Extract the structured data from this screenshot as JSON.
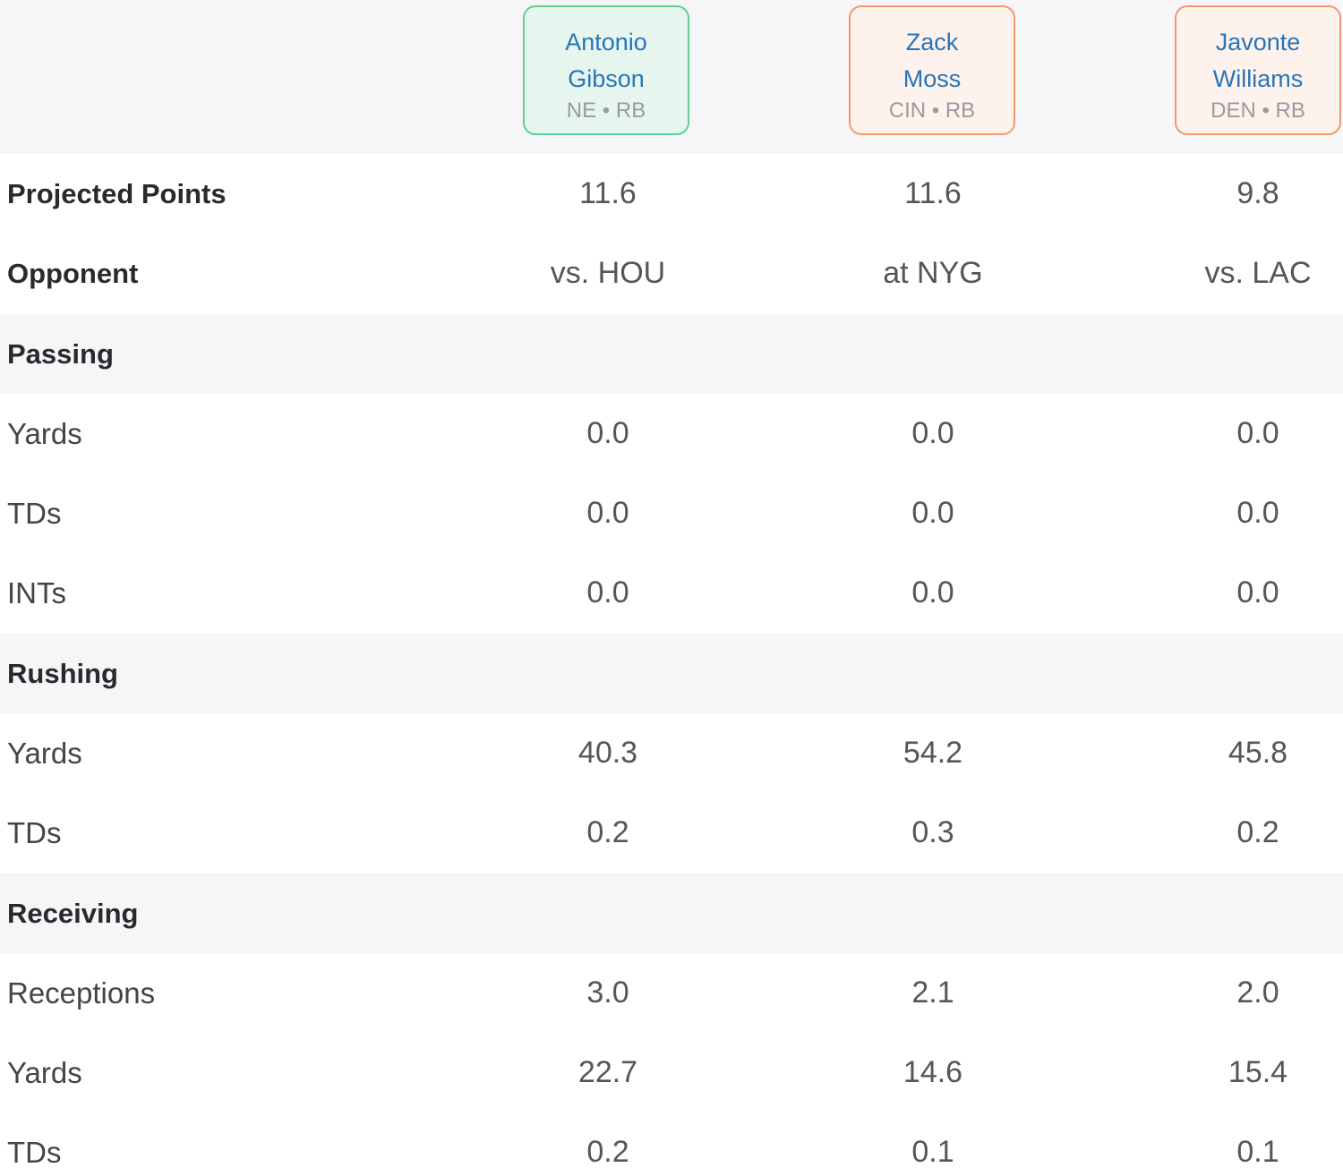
{
  "players": [
    {
      "first": "Antonio",
      "last": "Gibson",
      "meta": "NE • RB"
    },
    {
      "first": "Zack",
      "last": "Moss",
      "meta": "CIN • RB"
    },
    {
      "first": "Javonte",
      "last": "Williams",
      "meta": "DEN • RB"
    }
  ],
  "rows": {
    "projected_points": {
      "label": "Projected Points",
      "values": [
        "11.6",
        "11.6",
        "9.8"
      ]
    },
    "opponent": {
      "label": "Opponent",
      "values": [
        "vs. HOU",
        "at NYG",
        "vs. LAC"
      ]
    },
    "passing": {
      "label": "Passing"
    },
    "passing_yards": {
      "label": "Yards",
      "values": [
        "0.0",
        "0.0",
        "0.0"
      ]
    },
    "passing_tds": {
      "label": "TDs",
      "values": [
        "0.0",
        "0.0",
        "0.0"
      ]
    },
    "passing_ints": {
      "label": "INTs",
      "values": [
        "0.0",
        "0.0",
        "0.0"
      ]
    },
    "rushing": {
      "label": "Rushing"
    },
    "rushing_yards": {
      "label": "Yards",
      "values": [
        "40.3",
        "54.2",
        "45.8"
      ]
    },
    "rushing_tds": {
      "label": "TDs",
      "values": [
        "0.2",
        "0.3",
        "0.2"
      ]
    },
    "receiving": {
      "label": "Receiving"
    },
    "receptions": {
      "label": "Receptions",
      "values": [
        "3.0",
        "2.1",
        "2.0"
      ]
    },
    "receiving_yards": {
      "label": "Yards",
      "values": [
        "22.7",
        "14.6",
        "15.4"
      ]
    },
    "receiving_tds": {
      "label": "TDs",
      "values": [
        "0.2",
        "0.1",
        "0.1"
      ]
    }
  },
  "colors": {
    "card_green_border": "#5fcf95",
    "card_orange_border": "#f09a6a",
    "player_link": "#2775b8"
  }
}
